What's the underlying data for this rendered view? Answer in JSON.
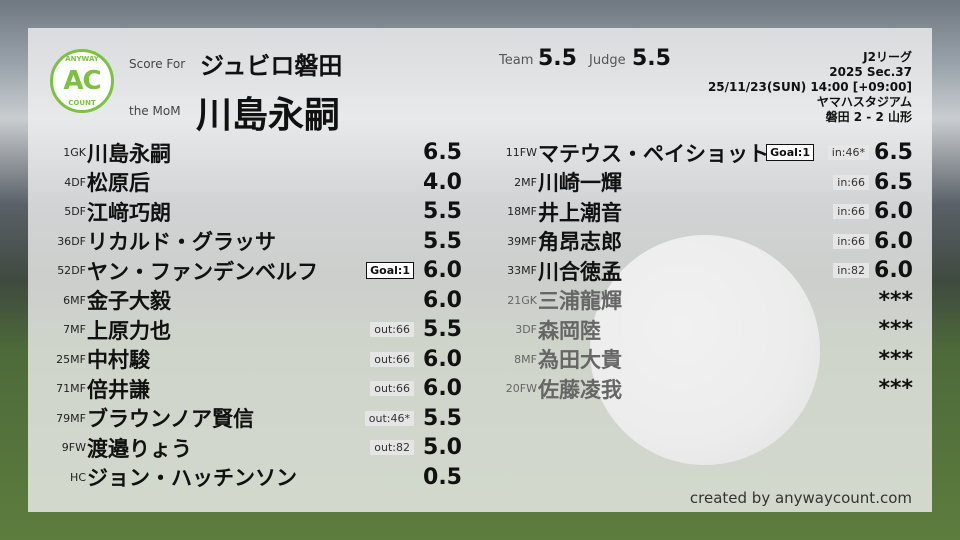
{
  "header": {
    "score_for_label": "Score For",
    "team": "ジュビロ磐田",
    "mom_label": "the MoM",
    "mom": "川島永嗣",
    "team_score_label": "Team",
    "team_score": "5.5",
    "judge_score_label": "Judge",
    "judge_score": "5.5"
  },
  "logo": {
    "top": "ANYWAY",
    "mid": "AC",
    "bottom": "COUNT",
    "color": "#7cc242"
  },
  "match": {
    "league": "J2リーグ",
    "season": "2025 Sec.37",
    "datetime": "25/11/23(SUN) 14:00 [+09:00]",
    "venue": "ヤマハスタジアム",
    "result": "磐田 2 - 2 山形"
  },
  "left": [
    {
      "num": "1",
      "pos": "GK",
      "name": "川島永嗣",
      "rating": "6.5",
      "goal": "",
      "sub": ""
    },
    {
      "num": "4",
      "pos": "DF",
      "name": "松原后",
      "rating": "4.0",
      "goal": "",
      "sub": ""
    },
    {
      "num": "5",
      "pos": "DF",
      "name": "江﨑巧朗",
      "rating": "5.5",
      "goal": "",
      "sub": ""
    },
    {
      "num": "36",
      "pos": "DF",
      "name": "リカルド・グラッサ",
      "rating": "5.5",
      "goal": "",
      "sub": ""
    },
    {
      "num": "52",
      "pos": "DF",
      "name": "ヤン・ファンデンベルフ",
      "rating": "6.0",
      "goal": "Goal:1",
      "sub": ""
    },
    {
      "num": "6",
      "pos": "MF",
      "name": "金子大毅",
      "rating": "6.0",
      "goal": "",
      "sub": ""
    },
    {
      "num": "7",
      "pos": "MF",
      "name": "上原力也",
      "rating": "5.5",
      "goal": "",
      "sub": "out:66"
    },
    {
      "num": "25",
      "pos": "MF",
      "name": "中村駿",
      "rating": "6.0",
      "goal": "",
      "sub": "out:66"
    },
    {
      "num": "71",
      "pos": "MF",
      "name": "倍井謙",
      "rating": "6.0",
      "goal": "",
      "sub": "out:66"
    },
    {
      "num": "79",
      "pos": "MF",
      "name": "ブラウンノア賢信",
      "rating": "5.5",
      "goal": "",
      "sub": "out:46*"
    },
    {
      "num": "9",
      "pos": "FW",
      "name": "渡邉りょう",
      "rating": "5.0",
      "goal": "",
      "sub": "out:82"
    },
    {
      "num": "",
      "pos": "HC",
      "name": "ジョン・ハッチンソン",
      "rating": "0.5",
      "goal": "",
      "sub": ""
    }
  ],
  "right": [
    {
      "num": "11",
      "pos": "FW",
      "name": "マテウス・ペイショット",
      "rating": "6.5",
      "goal": "Goal:1",
      "sub": "in:46*"
    },
    {
      "num": "2",
      "pos": "MF",
      "name": "川崎一輝",
      "rating": "6.5",
      "goal": "",
      "sub": "in:66"
    },
    {
      "num": "18",
      "pos": "MF",
      "name": "井上潮音",
      "rating": "6.0",
      "goal": "",
      "sub": "in:66"
    },
    {
      "num": "39",
      "pos": "MF",
      "name": "角昂志郎",
      "rating": "6.0",
      "goal": "",
      "sub": "in:66"
    },
    {
      "num": "33",
      "pos": "MF",
      "name": "川合徳孟",
      "rating": "6.0",
      "goal": "",
      "sub": "in:82"
    },
    {
      "num": "21",
      "pos": "GK",
      "name": "三浦龍輝",
      "rating": "***",
      "goal": "",
      "sub": "",
      "unused": true
    },
    {
      "num": "3",
      "pos": "DF",
      "name": "森岡陸",
      "rating": "***",
      "goal": "",
      "sub": "",
      "unused": true
    },
    {
      "num": "8",
      "pos": "MF",
      "name": "為田大貴",
      "rating": "***",
      "goal": "",
      "sub": "",
      "unused": true
    },
    {
      "num": "20",
      "pos": "FW",
      "name": "佐藤凌我",
      "rating": "***",
      "goal": "",
      "sub": "",
      "unused": true
    }
  ],
  "footer": {
    "credit": "created by anywaycount.com"
  }
}
